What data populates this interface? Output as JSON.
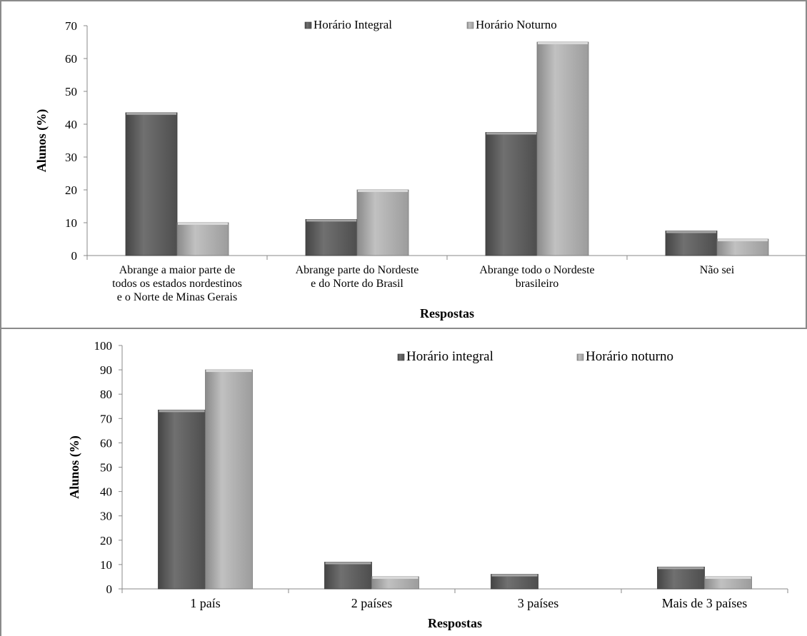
{
  "chart_data": [
    {
      "type": "bar",
      "title": "",
      "xlabel": "Respostas",
      "ylabel": "Alunos (%)",
      "ylim": [
        0,
        70
      ],
      "ytick_step": 10,
      "categories": [
        [
          "Abrange a maior parte de",
          "todos os estados nordestinos",
          "e o Norte de Minas Gerais"
        ],
        [
          "Abrange parte do Nordeste",
          "e do Norte do Brasil"
        ],
        [
          "Abrange todo o Nordeste",
          "brasileiro"
        ],
        [
          "Não sei"
        ]
      ],
      "series": [
        {
          "name": "Horário Integral",
          "values": [
            43.5,
            11,
            37.5,
            7.5
          ],
          "color": "#5c5c5c"
        },
        {
          "name": "Horário Noturno",
          "values": [
            10,
            20,
            65,
            5
          ],
          "color": "#b8b8b8"
        }
      ],
      "legend": "top-center",
      "grid": false
    },
    {
      "type": "bar",
      "title": "",
      "xlabel": "Respostas",
      "ylabel": "Alunos (%)",
      "ylim": [
        0,
        100
      ],
      "ytick_step": 10,
      "categories": [
        [
          "1 país"
        ],
        [
          "2 países"
        ],
        [
          "3 países"
        ],
        [
          "Mais de 3 países"
        ]
      ],
      "series": [
        {
          "name": "Horário integral",
          "values": [
            73.5,
            11,
            6,
            9
          ],
          "color": "#5c5c5c"
        },
        {
          "name": "Horário noturno",
          "values": [
            90,
            5,
            0,
            5
          ],
          "color": "#b8b8b8"
        }
      ],
      "legend": "top-right",
      "grid": false
    }
  ]
}
